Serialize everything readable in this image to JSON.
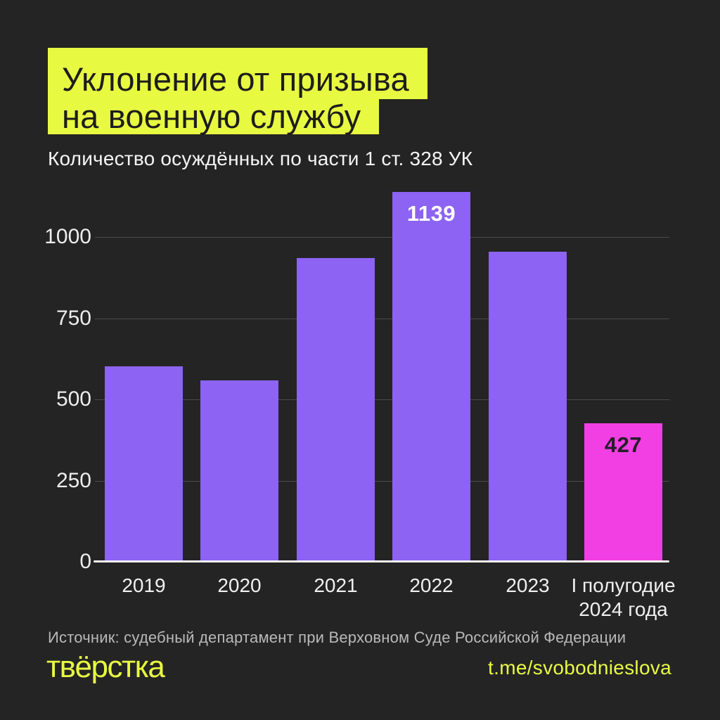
{
  "title": {
    "line1": "Уклонение от призыва",
    "line2": "на военную службу"
  },
  "subtitle": "Количество осуждённых по части 1 ст. 328 УК",
  "chart_data": {
    "type": "bar",
    "title": "Уклонение от призыва на военную службу",
    "subtitle": "Количество осуждённых по части 1 ст. 328 УК",
    "categories": [
      "2019",
      "2020",
      "2021",
      "2022",
      "2023",
      "I полугодие 2024 года"
    ],
    "values": [
      601,
      558,
      936,
      1139,
      955,
      427
    ],
    "bar_colors": [
      "#8c63f2",
      "#8c63f2",
      "#8c63f2",
      "#8c63f2",
      "#8c63f2",
      "#f13fe3"
    ],
    "value_labels": [
      {
        "index": 3,
        "text": "1139",
        "color": "#ffffff"
      },
      {
        "index": 5,
        "text": "427",
        "color": "#241f27"
      }
    ],
    "yticks": [
      0,
      250,
      500,
      750,
      1000
    ],
    "ylim": [
      0,
      1190
    ],
    "grid": true,
    "legend": false,
    "xlabel": "",
    "ylabel": ""
  },
  "footer": {
    "source": "Источник: судебный департамент при Верховном Суде Российской Федерации",
    "logo": "твёрстка",
    "link": "t.me/svobodnieslova"
  },
  "colors": {
    "background": "#242424",
    "accent_yellow": "#e8f942",
    "bar_purple": "#8c63f2",
    "bar_pink": "#f13fe3",
    "text_light": "#f0f0f0",
    "text_muted": "#b9b9b9",
    "gridline": "#4b4b4b",
    "axis_line": "#f2f2f2",
    "title_text": "#1d1d1d"
  }
}
